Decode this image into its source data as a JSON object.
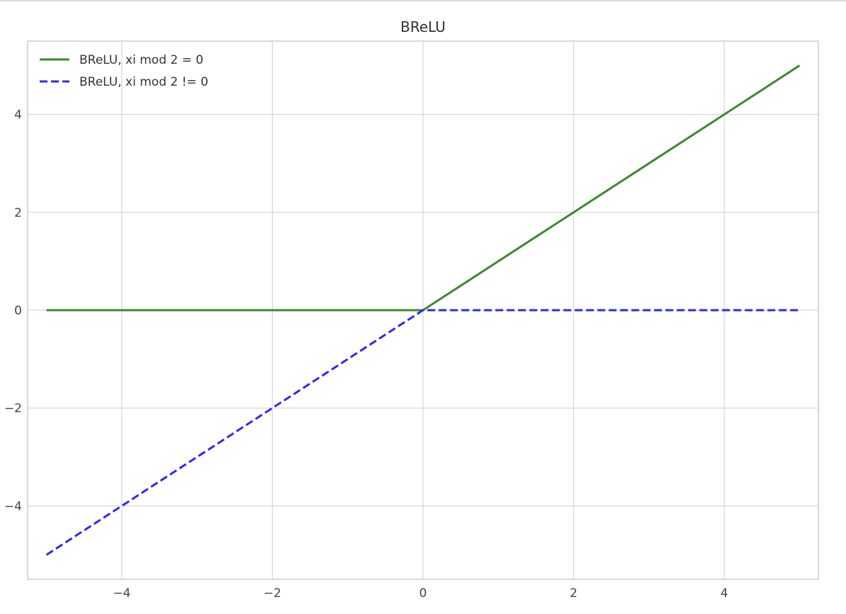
{
  "chart_data": {
    "type": "line",
    "title": "BReLU",
    "xlabel": "",
    "ylabel": "",
    "xlim": [
      -5.25,
      5.25
    ],
    "ylim": [
      -5.5,
      5.5
    ],
    "xticks": [
      -4,
      -2,
      0,
      2,
      4
    ],
    "yticks": [
      -4,
      -2,
      0,
      2,
      4
    ],
    "xtick_labels": [
      "−4",
      "−2",
      "0",
      "2",
      "4"
    ],
    "ytick_labels": [
      "−4",
      "−2",
      "0",
      "2",
      "4"
    ],
    "grid": true,
    "legend_position": "top-left",
    "series": [
      {
        "name": "BReLU, xi mod 2 = 0",
        "color": "#3a8a2a",
        "style": "solid",
        "x": [
          -5,
          0,
          5
        ],
        "y": [
          0,
          0,
          5
        ]
      },
      {
        "name": "BReLU, xi mod 2 != 0",
        "color": "#2b2bf0",
        "style": "dashed",
        "x": [
          -5,
          0,
          5
        ],
        "y": [
          -5,
          0,
          0
        ]
      }
    ]
  }
}
